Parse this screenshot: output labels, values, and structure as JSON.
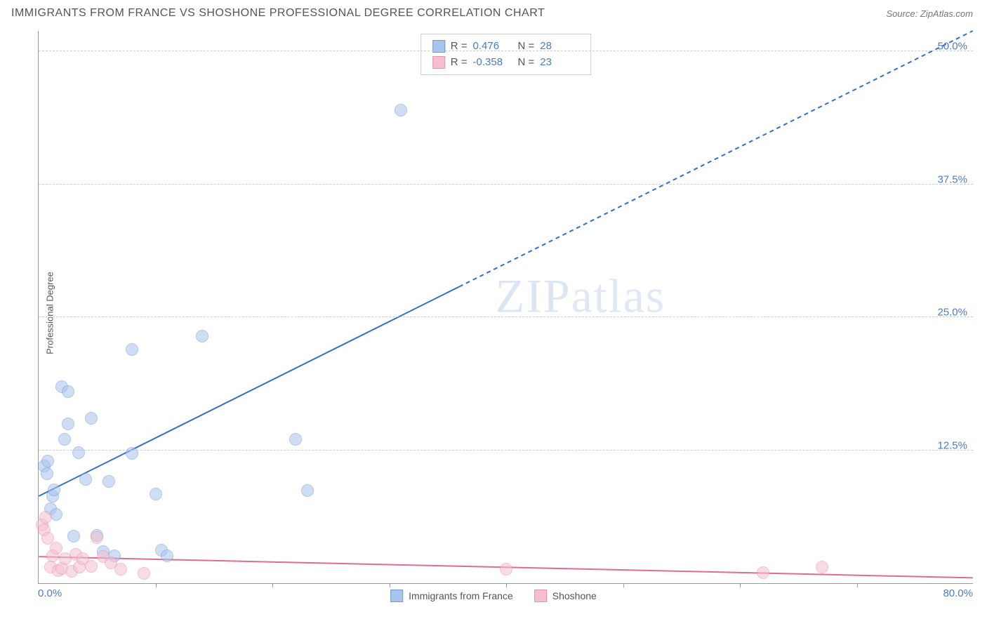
{
  "header": {
    "title": "IMMIGRANTS FROM FRANCE VS SHOSHONE PROFESSIONAL DEGREE CORRELATION CHART",
    "source_prefix": "Source: ",
    "source_name": "ZipAtlas.com"
  },
  "chart": {
    "type": "scatter",
    "ylabel": "Professional Degree",
    "xlim": [
      0,
      80
    ],
    "ylim": [
      0,
      52
    ],
    "background_color": "#ffffff",
    "grid_color": "#cccccc",
    "axis_color": "#999999",
    "ytick_labels": [
      "12.5%",
      "25.0%",
      "37.5%",
      "50.0%"
    ],
    "ytick_values": [
      12.5,
      25.0,
      37.5,
      50.0
    ],
    "xtick_values": [
      10,
      20,
      30,
      40,
      50,
      60,
      70
    ],
    "x_label_min": "0.0%",
    "x_label_max": "80.0%",
    "watermark": "ZIPatlas",
    "marker_radius": 9,
    "marker_opacity": 0.55,
    "series": [
      {
        "name": "Immigrants from France",
        "color_fill": "#a9c4ec",
        "color_stroke": "#6f9bd8",
        "r_label": "R =",
        "r_value": "0.476",
        "n_label": "N =",
        "n_value": "28",
        "trend": {
          "x1": 0,
          "y1": 8.2,
          "x2": 80,
          "y2": 52,
          "solid_until_x": 36,
          "color": "#2f6fd0",
          "width": 2
        },
        "points": [
          [
            0.5,
            11
          ],
          [
            0.7,
            10.3
          ],
          [
            0.8,
            11.5
          ],
          [
            1,
            7
          ],
          [
            1.2,
            8.2
          ],
          [
            1.3,
            8.8
          ],
          [
            1.5,
            6.5
          ],
          [
            2,
            18.5
          ],
          [
            2.5,
            18
          ],
          [
            2.5,
            15
          ],
          [
            2.2,
            13.5
          ],
          [
            3,
            4.4
          ],
          [
            3.4,
            12.3
          ],
          [
            4,
            9.8
          ],
          [
            4.5,
            15.5
          ],
          [
            5,
            4.5
          ],
          [
            5.5,
            3
          ],
          [
            6,
            9.6
          ],
          [
            6.5,
            2.6
          ],
          [
            8,
            12.2
          ],
          [
            8,
            22
          ],
          [
            10,
            8.4
          ],
          [
            10.5,
            3.1
          ],
          [
            11,
            2.6
          ],
          [
            14,
            23.2
          ],
          [
            22,
            13.5
          ],
          [
            23,
            8.7
          ],
          [
            31,
            44.5
          ]
        ]
      },
      {
        "name": "Shoshone",
        "color_fill": "#f4c0cf",
        "color_stroke": "#e890ac",
        "r_label": "R =",
        "r_value": "-0.358",
        "n_label": "N =",
        "n_value": "23",
        "trend": {
          "x1": 0,
          "y1": 2.5,
          "x2": 80,
          "y2": 0.5,
          "solid_until_x": 80,
          "color": "#e36a94",
          "width": 2
        },
        "points": [
          [
            0.3,
            5.5
          ],
          [
            0.5,
            5
          ],
          [
            0.6,
            6.2
          ],
          [
            0.8,
            4.2
          ],
          [
            1,
            1.5
          ],
          [
            1.2,
            2.6
          ],
          [
            1.5,
            3.3
          ],
          [
            1.7,
            1.2
          ],
          [
            2,
            1.4
          ],
          [
            2.3,
            2.3
          ],
          [
            2.8,
            1.1
          ],
          [
            3.2,
            2.7
          ],
          [
            3.5,
            1.5
          ],
          [
            3.8,
            2.3
          ],
          [
            4.5,
            1.6
          ],
          [
            5,
            4.3
          ],
          [
            5.5,
            2.5
          ],
          [
            6.2,
            1.9
          ],
          [
            7,
            1.3
          ],
          [
            9,
            0.9
          ],
          [
            40,
            1.3
          ],
          [
            62,
            1.0
          ],
          [
            67,
            1.5
          ]
        ]
      }
    ]
  },
  "bottom_legend": [
    {
      "label": "Immigrants from France",
      "fill": "#a9c4ec",
      "stroke": "#6f9bd8"
    },
    {
      "label": "Shoshone",
      "fill": "#f4c0cf",
      "stroke": "#e890ac"
    }
  ]
}
